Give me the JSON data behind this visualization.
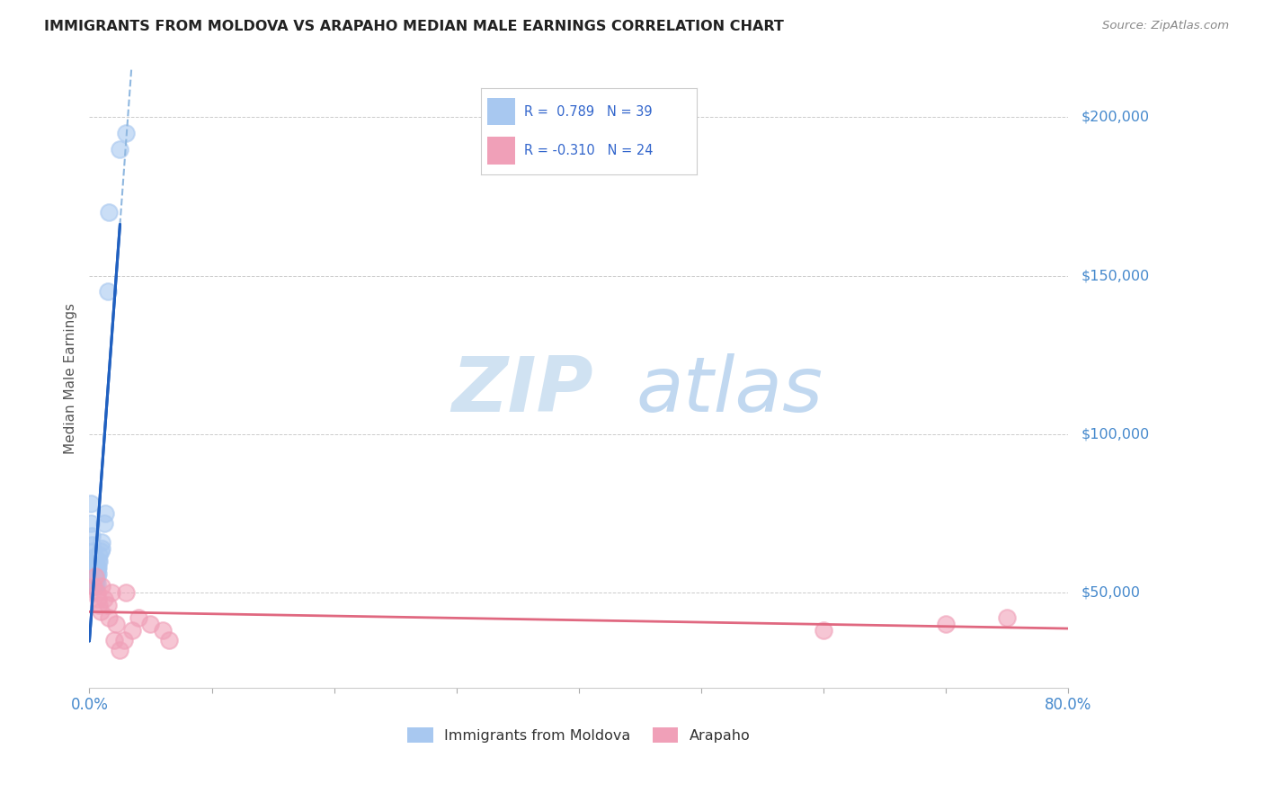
{
  "title": "IMMIGRANTS FROM MOLDOVA VS ARAPAHO MEDIAN MALE EARNINGS CORRELATION CHART",
  "source": "Source: ZipAtlas.com",
  "ylabel": "Median Male Earnings",
  "xlim": [
    0.0,
    0.8
  ],
  "ylim": [
    20000,
    215000
  ],
  "yticks": [
    50000,
    100000,
    150000,
    200000
  ],
  "ytick_labels": [
    "$50,000",
    "$100,000",
    "$150,000",
    "$200,000"
  ],
  "xticks": [
    0.0,
    0.1,
    0.2,
    0.3,
    0.4,
    0.5,
    0.6,
    0.7,
    0.8
  ],
  "blue_color": "#a8c8f0",
  "pink_color": "#f0a0b8",
  "blue_line_color": "#2060c0",
  "pink_line_color": "#e06880",
  "dashed_line_color": "#90b8e0",
  "watermark_zip": "ZIP",
  "watermark_atlas": "atlas",
  "legend_label_blue": "Immigrants from Moldova",
  "legend_label_pink": "Arapaho",
  "blue_scatter_x": [
    0.001,
    0.001,
    0.002,
    0.002,
    0.003,
    0.003,
    0.003,
    0.003,
    0.003,
    0.004,
    0.004,
    0.004,
    0.004,
    0.004,
    0.004,
    0.005,
    0.005,
    0.005,
    0.005,
    0.005,
    0.005,
    0.006,
    0.006,
    0.006,
    0.006,
    0.007,
    0.007,
    0.007,
    0.008,
    0.008,
    0.009,
    0.01,
    0.01,
    0.012,
    0.013,
    0.015,
    0.016,
    0.025,
    0.03
  ],
  "blue_scatter_y": [
    78000,
    72000,
    68000,
    65000,
    63000,
    61000,
    59000,
    57000,
    55000,
    60000,
    58000,
    57000,
    55000,
    54000,
    52000,
    59000,
    57000,
    56000,
    55000,
    53000,
    52000,
    58000,
    57000,
    55000,
    53000,
    60000,
    58000,
    56000,
    62000,
    60000,
    63000,
    66000,
    64000,
    72000,
    75000,
    145000,
    170000,
    190000,
    195000
  ],
  "pink_scatter_x": [
    0.003,
    0.005,
    0.006,
    0.007,
    0.008,
    0.009,
    0.01,
    0.012,
    0.015,
    0.016,
    0.018,
    0.02,
    0.022,
    0.025,
    0.028,
    0.03,
    0.035,
    0.04,
    0.05,
    0.06,
    0.065,
    0.6,
    0.7,
    0.75
  ],
  "pink_scatter_y": [
    52000,
    55000,
    50000,
    48000,
    46000,
    44000,
    52000,
    48000,
    46000,
    42000,
    50000,
    35000,
    40000,
    32000,
    35000,
    50000,
    38000,
    42000,
    40000,
    38000,
    35000,
    38000,
    40000,
    42000
  ],
  "background_color": "#ffffff",
  "grid_color": "#cccccc"
}
